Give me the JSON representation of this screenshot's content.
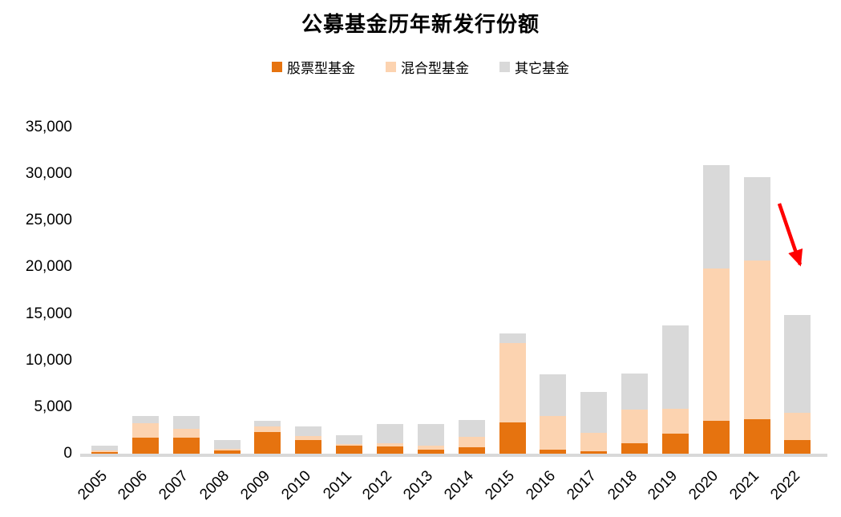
{
  "title": "公募基金历年新发行份额",
  "legend": [
    {
      "key": "stock",
      "label": "股票型基金",
      "color": "#E6730F"
    },
    {
      "key": "hybrid",
      "label": "混合型基金",
      "color": "#FCD3B0"
    },
    {
      "key": "other",
      "label": "其它基金",
      "color": "#D9D9D9"
    }
  ],
  "colors": {
    "accent_orange": "#E6730F",
    "light_orange": "#FCD3B0",
    "gray": "#D9D9D9",
    "arrow_red": "#FF0000",
    "axis_gray": "#D9D9D9"
  },
  "chart_data": {
    "type": "bar",
    "stacked": true,
    "title": "公募基金历年新发行份额",
    "categories": [
      "2005",
      "2006",
      "2007",
      "2008",
      "2009",
      "2010",
      "2011",
      "2012",
      "2013",
      "2014",
      "2015",
      "2016",
      "2017",
      "2018",
      "2019",
      "2020",
      "2021",
      "2022"
    ],
    "series": [
      {
        "name": "股票型基金",
        "key": "stock",
        "color": "#E6730F",
        "values": [
          200,
          1750,
          1750,
          350,
          2300,
          1450,
          850,
          750,
          400,
          700,
          3350,
          400,
          300,
          1100,
          2150,
          3500,
          3700,
          1500
        ]
      },
      {
        "name": "混合型基金",
        "key": "hybrid",
        "color": "#FCD3B0",
        "values": [
          150,
          1500,
          900,
          150,
          650,
          400,
          200,
          400,
          450,
          1100,
          8500,
          3650,
          1950,
          3600,
          2700,
          16400,
          17000,
          2900
        ]
      },
      {
        "name": "其它基金",
        "key": "other",
        "color": "#D9D9D9",
        "values": [
          550,
          750,
          1350,
          1000,
          550,
          1050,
          950,
          2050,
          2350,
          1800,
          1050,
          4450,
          4350,
          3900,
          8950,
          11100,
          9000,
          10500
        ]
      }
    ],
    "totals": [
      900,
      4000,
      4000,
      1500,
      3500,
      2900,
      2000,
      3200,
      3200,
      3600,
      12900,
      8500,
      6600,
      8600,
      13800,
      31000,
      29700,
      14900
    ],
    "xlabel": "",
    "ylabel": "",
    "ylim": [
      0,
      35000
    ],
    "ytick_interval": 5000,
    "ytick_labels": [
      "0",
      "5,000",
      "10,000",
      "15,000",
      "20,000",
      "25,000",
      "30,000",
      "35,000"
    ],
    "grid": false,
    "legend_position": "top-center",
    "annotations": [
      {
        "type": "arrow",
        "color": "#FF0000",
        "description": "red arrow pointing down-right between 2021 and 2022 bars indicating decline"
      }
    ]
  }
}
